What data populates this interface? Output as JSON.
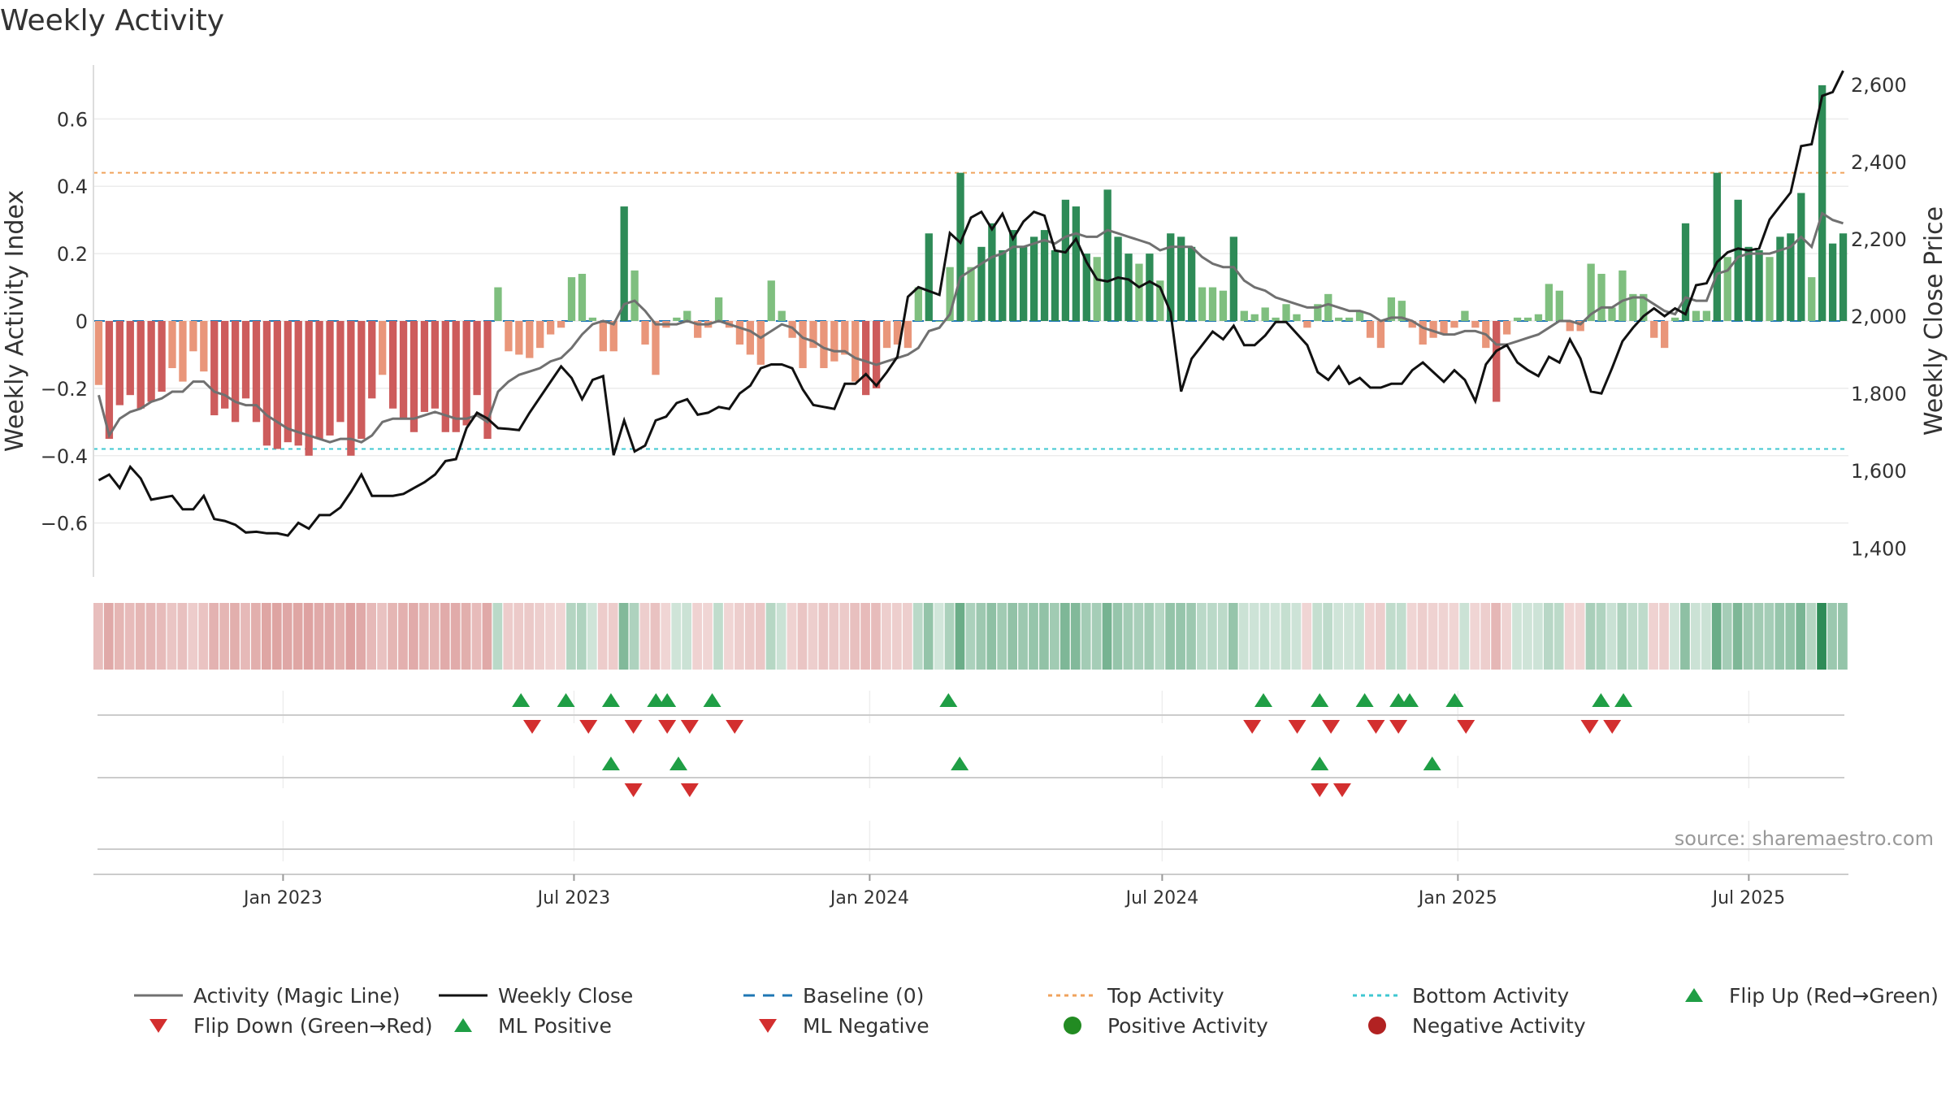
{
  "chart_data": {
    "type": "bar",
    "title": "Weekly Activity",
    "ylabel_left": "Weekly Activity Index",
    "ylabel_right": "Weekly Close Price",
    "source": "source: sharemaestro.com",
    "date_range": [
      "2022-09-05",
      "2025-09-01"
    ],
    "left_axis": {
      "ylim": [
        -0.76,
        0.76
      ],
      "ticks": [
        -0.6,
        -0.4,
        -0.2,
        0,
        0.2,
        0.4,
        0.6
      ],
      "tick_labels": [
        "−0.6",
        "−0.4",
        "−0.2",
        "0",
        "0.2",
        "0.4",
        "0.6"
      ]
    },
    "right_axis": {
      "ylim": [
        1325,
        2650
      ],
      "ticks": [
        1400,
        1600,
        1800,
        2000,
        2200,
        2400,
        2600
      ],
      "tick_labels": [
        "1,400",
        "1,600",
        "1,800",
        "2,000",
        "2,200",
        "2,400",
        "2,600"
      ]
    },
    "x_ticks": [
      {
        "date": "2023-01-01",
        "label": "Jan 2023"
      },
      {
        "date": "2023-07-01",
        "label": "Jul 2023"
      },
      {
        "date": "2024-01-01",
        "label": "Jan 2024"
      },
      {
        "date": "2024-07-01",
        "label": "Jul 2024"
      },
      {
        "date": "2025-01-01",
        "label": "Jan 2025"
      },
      {
        "date": "2025-07-01",
        "label": "Jul 2025"
      }
    ],
    "reference_lines": {
      "top_activity": 0.44,
      "bottom_activity": -0.38,
      "baseline": 0
    },
    "series": [
      {
        "name": "Activity Index",
        "values": [
          -0.19,
          -0.35,
          -0.25,
          -0.22,
          -0.26,
          -0.24,
          -0.21,
          -0.14,
          -0.18,
          -0.09,
          -0.15,
          -0.28,
          -0.26,
          -0.3,
          -0.23,
          -0.3,
          -0.37,
          -0.38,
          -0.36,
          -0.37,
          -0.4,
          -0.35,
          -0.34,
          -0.3,
          -0.4,
          -0.35,
          -0.23,
          -0.16,
          -0.26,
          -0.29,
          -0.33,
          -0.27,
          -0.26,
          -0.33,
          -0.33,
          -0.31,
          -0.22,
          -0.35,
          0.1,
          -0.09,
          -0.1,
          -0.11,
          -0.08,
          -0.04,
          -0.02,
          0.13,
          0.14,
          0.01,
          -0.09,
          -0.09,
          0.34,
          0.15,
          -0.07,
          -0.16,
          -0.02,
          0.01,
          0.03,
          -0.05,
          -0.02,
          0.07,
          -0.02,
          -0.07,
          -0.1,
          -0.13,
          0.12,
          0.03,
          -0.05,
          -0.14,
          -0.08,
          -0.14,
          -0.12,
          -0.1,
          -0.18,
          -0.22,
          -0.2,
          -0.08,
          -0.07,
          -0.08,
          0.1,
          0.26,
          0.0,
          0.16,
          0.44,
          0.16,
          0.22,
          0.29,
          0.21,
          0.27,
          0.22,
          0.25,
          0.27,
          0.21,
          0.36,
          0.34,
          0.2,
          0.19,
          0.39,
          0.25,
          0.2,
          0.17,
          0.2,
          0.12,
          0.26,
          0.25,
          0.22,
          0.1,
          0.1,
          0.09,
          0.25,
          0.03,
          0.02,
          0.04,
          0.01,
          0.05,
          0.02,
          -0.02,
          0.05,
          0.08,
          0.01,
          0.01,
          0.03,
          -0.05,
          -0.08,
          0.07,
          0.06,
          -0.02,
          -0.07,
          -0.05,
          -0.04,
          -0.02,
          0.03,
          -0.02,
          -0.08,
          -0.24,
          -0.04,
          0.01,
          0.01,
          0.02,
          0.11,
          0.09,
          -0.03,
          -0.03,
          0.17,
          0.14,
          0.04,
          0.15,
          0.08,
          0.08,
          -0.05,
          -0.08,
          0.01,
          0.29,
          0.03,
          0.03,
          0.44,
          0.19,
          0.36,
          0.22,
          0.21,
          0.19,
          0.25,
          0.26,
          0.38,
          0.13,
          0.7,
          0.23,
          0.26
        ]
      },
      {
        "name": "Activity (Magic Line)",
        "values": [
          -0.22,
          -0.34,
          -0.29,
          -0.27,
          -0.26,
          -0.24,
          -0.23,
          -0.21,
          -0.21,
          -0.18,
          -0.18,
          -0.21,
          -0.22,
          -0.24,
          -0.25,
          -0.25,
          -0.28,
          -0.3,
          -0.32,
          -0.33,
          -0.34,
          -0.35,
          -0.36,
          -0.35,
          -0.35,
          -0.36,
          -0.34,
          -0.3,
          -0.29,
          -0.29,
          -0.29,
          -0.28,
          -0.27,
          -0.28,
          -0.29,
          -0.29,
          -0.28,
          -0.3,
          -0.21,
          -0.18,
          -0.16,
          -0.15,
          -0.14,
          -0.12,
          -0.11,
          -0.08,
          -0.04,
          -0.01,
          0.0,
          -0.01,
          0.05,
          0.06,
          0.03,
          -0.01,
          -0.01,
          -0.01,
          0.0,
          -0.01,
          -0.01,
          0.0,
          -0.01,
          -0.02,
          -0.03,
          -0.05,
          -0.03,
          -0.01,
          -0.02,
          -0.05,
          -0.06,
          -0.08,
          -0.09,
          -0.09,
          -0.11,
          -0.12,
          -0.13,
          -0.12,
          -0.11,
          -0.1,
          -0.08,
          -0.03,
          -0.02,
          0.02,
          0.13,
          0.15,
          0.17,
          0.19,
          0.2,
          0.22,
          0.22,
          0.23,
          0.24,
          0.23,
          0.25,
          0.26,
          0.25,
          0.25,
          0.27,
          0.26,
          0.25,
          0.24,
          0.23,
          0.21,
          0.22,
          0.22,
          0.22,
          0.19,
          0.17,
          0.16,
          0.16,
          0.12,
          0.1,
          0.09,
          0.07,
          0.06,
          0.05,
          0.04,
          0.04,
          0.05,
          0.04,
          0.03,
          0.03,
          0.02,
          0.0,
          0.01,
          0.01,
          0.0,
          -0.02,
          -0.03,
          -0.04,
          -0.04,
          -0.03,
          -0.03,
          -0.04,
          -0.07,
          -0.07,
          -0.06,
          -0.05,
          -0.04,
          -0.02,
          0.0,
          0.0,
          -0.01,
          0.02,
          0.04,
          0.04,
          0.06,
          0.07,
          0.07,
          0.05,
          0.03,
          0.02,
          0.07,
          0.06,
          0.06,
          0.14,
          0.15,
          0.19,
          0.2,
          0.2,
          0.2,
          0.21,
          0.22,
          0.25,
          0.22,
          0.32,
          0.3,
          0.29
        ]
      },
      {
        "name": "Weekly Close",
        "values": [
          1575,
          1590,
          1555,
          1610,
          1580,
          1525,
          1530,
          1535,
          1500,
          1500,
          1535,
          1475,
          1470,
          1460,
          1440,
          1442,
          1438,
          1438,
          1432,
          1465,
          1450,
          1485,
          1485,
          1505,
          1545,
          1590,
          1535,
          1535,
          1535,
          1540,
          1555,
          1570,
          1590,
          1625,
          1630,
          1710,
          1750,
          1735,
          1710,
          1708,
          1705,
          1750,
          1790,
          1830,
          1870,
          1840,
          1785,
          1835,
          1845,
          1640,
          1730,
          1650,
          1665,
          1730,
          1740,
          1775,
          1785,
          1745,
          1750,
          1765,
          1760,
          1800,
          1820,
          1865,
          1875,
          1875,
          1865,
          1810,
          1770,
          1765,
          1760,
          1825,
          1825,
          1850,
          1820,
          1855,
          1895,
          2050,
          2075,
          2065,
          2055,
          2215,
          2190,
          2255,
          2270,
          2225,
          2265,
          2200,
          2245,
          2270,
          2260,
          2170,
          2165,
          2200,
          2140,
          2095,
          2090,
          2100,
          2095,
          2075,
          2090,
          2075,
          2010,
          1805,
          1890,
          1925,
          1960,
          1940,
          1975,
          1925,
          1925,
          1950,
          1985,
          1985,
          1955,
          1925,
          1855,
          1835,
          1870,
          1825,
          1840,
          1815,
          1815,
          1825,
          1825,
          1860,
          1880,
          1855,
          1830,
          1860,
          1835,
          1780,
          1875,
          1910,
          1925,
          1880,
          1860,
          1845,
          1895,
          1880,
          1940,
          1890,
          1805,
          1800,
          1865,
          1935,
          1970,
          2000,
          2020,
          2000,
          2020,
          2005,
          2080,
          2085,
          2140,
          2165,
          2175,
          2170,
          2175,
          2250,
          2285,
          2320,
          2440,
          2445,
          2570,
          2580,
          2635
        ]
      }
    ],
    "heat_strip": {
      "name": "Activity Strength"
    },
    "markers": {
      "flip_up_dates": [
        "2023-05-29",
        "2023-06-26",
        "2023-07-24",
        "2023-08-21",
        "2023-08-28",
        "2023-09-25",
        "2024-02-19",
        "2024-09-02",
        "2024-10-07",
        "2024-11-04",
        "2024-11-25",
        "2024-12-02",
        "2024-12-30",
        "2025-03-31",
        "2025-04-14"
      ],
      "flip_down_dates": [
        "2023-06-05",
        "2023-07-10",
        "2023-08-07",
        "2023-08-28",
        "2023-09-11",
        "2023-10-09",
        "2024-08-26",
        "2024-09-23",
        "2024-10-14",
        "2024-11-11",
        "2024-11-25",
        "2025-01-06",
        "2025-03-24",
        "2025-04-07"
      ],
      "ml_positive_dates": [
        "2023-07-24",
        "2023-09-04",
        "2024-02-26",
        "2024-10-07",
        "2024-12-16"
      ],
      "ml_negative_dates": [
        "2023-08-07",
        "2023-09-11",
        "2024-10-07",
        "2024-10-21"
      ]
    },
    "legend": [
      {
        "label": "Activity (Magic Line)",
        "symbol": "line",
        "color": "#707070"
      },
      {
        "label": "Weekly Close",
        "symbol": "line",
        "color": "#111111"
      },
      {
        "label": "Baseline (0)",
        "symbol": "dash",
        "color": "#1f77b4"
      },
      {
        "label": "Top Activity",
        "symbol": "dot-line",
        "color": "#f0a35c"
      },
      {
        "label": "Bottom Activity",
        "symbol": "dot-line",
        "color": "#3fc7d1"
      },
      {
        "label": "Flip Up (Red→Green)",
        "symbol": "tri-up",
        "color": "#1f9e45"
      },
      {
        "label": "Flip Down (Green→Red)",
        "symbol": "tri-down",
        "color": "#d32f2f"
      },
      {
        "label": "ML Positive",
        "symbol": "tri-up",
        "color": "#1f9e45"
      },
      {
        "label": "ML Negative",
        "symbol": "tri-down",
        "color": "#d32f2f"
      },
      {
        "label": "Positive Activity",
        "symbol": "circle",
        "color": "#228b22"
      },
      {
        "label": "Negative Activity",
        "symbol": "circle",
        "color": "#b22222"
      }
    ],
    "colors": {
      "pos_dark": "#2e8b57",
      "pos_light": "#7fbf7f",
      "neg_dark": "#cd5c5c",
      "neg_light": "#e9967a",
      "magic_line": "#707070",
      "close_line": "#111111",
      "baseline": "#1f77b4",
      "top_line": "#f0a35c",
      "bottom_line": "#3fc7d1",
      "flip_up": "#1f9e45",
      "flip_down": "#d32f2f"
    }
  }
}
